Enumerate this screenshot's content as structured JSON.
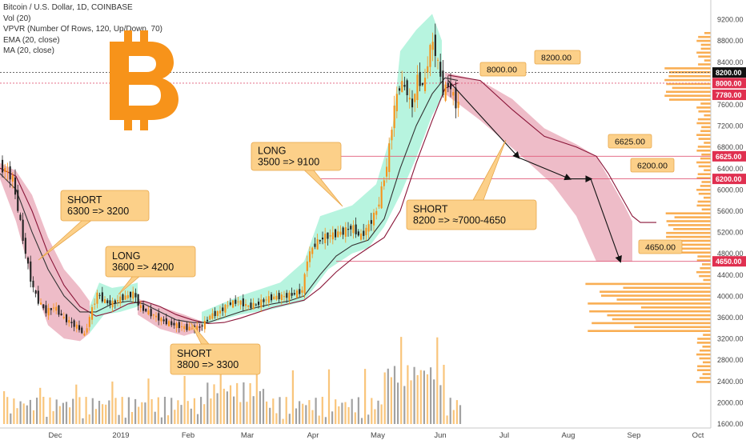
{
  "legend": {
    "title": "Bitcoin / U.S. Dollar, 1D, COINBASE",
    "lines": [
      "Vol (20)",
      "VPVR (Number Of Rows, 120, Up/Down, 70)",
      "EMA (20, close)",
      "MA (20, close)"
    ]
  },
  "logo": {
    "name": "bitcoin-logo",
    "glyph": "B",
    "color": "#f7931a"
  },
  "colors": {
    "up": "#f7931a",
    "down": "#222222",
    "short_zone": "#e8a5b5",
    "long_zone": "#9ff0d4",
    "callout_bg": "#fcd089",
    "callout_border": "#e7a64a",
    "hline": "#e05b7a",
    "ema": "#333333",
    "ma": "#8a1538"
  },
  "chart_data": {
    "type": "candlestick",
    "title": "Bitcoin / U.S. Dollar, 1D, COINBASE",
    "x_axis": {
      "ticks": [
        "Dec",
        "2019",
        "Feb",
        "Mar",
        "Apr",
        "May",
        "Jun",
        "Jul",
        "Aug",
        "Sep",
        "Oct"
      ]
    },
    "y_axis": {
      "ticks": [
        1600,
        2000,
        2400,
        2800,
        3200,
        3600,
        4000,
        4400,
        4800,
        5200,
        5600,
        6000,
        6400,
        6800,
        7200,
        7600,
        8400,
        8800,
        9200
      ],
      "ylim": [
        1600,
        9400
      ]
    },
    "price_markers": [
      {
        "label": "8200.00",
        "value": 8200,
        "bg": "#111111",
        "fg": "#ffffff"
      },
      {
        "label": "8000.00",
        "value": 8000,
        "bg": "#e03050",
        "fg": "#ffffff"
      },
      {
        "label": "7780.00",
        "value": 7780,
        "bg": "#e03050",
        "fg": "#ffffff"
      },
      {
        "label": "6625.00",
        "value": 6625,
        "bg": "#e03050",
        "fg": "#ffffff"
      },
      {
        "label": "6200.00",
        "value": 6200,
        "bg": "#e03050",
        "fg": "#ffffff"
      },
      {
        "label": "4650.00",
        "value": 4650,
        "bg": "#e03050",
        "fg": "#ffffff"
      }
    ],
    "horizontal_levels": [
      8200,
      8000,
      6625,
      6200,
      4650
    ],
    "target_labels": [
      "8000.00",
      "8200.00",
      "6625.00",
      "6200.00",
      "4650.00"
    ],
    "annotations": [
      {
        "label": "SHORT\n6300 => 3200",
        "from": 6300,
        "to": 3200,
        "kind": "short"
      },
      {
        "label": "LONG\n3600 => 4200",
        "from": 3600,
        "to": 4200,
        "kind": "long"
      },
      {
        "label": "SHORT\n3800 => 3300",
        "from": 3800,
        "to": 3300,
        "kind": "short"
      },
      {
        "label": "LONG\n3500 => 9100",
        "from": 3500,
        "to": 9100,
        "kind": "long"
      },
      {
        "label": "SHORT\n8200 => ≈7000-4650",
        "from": 8200,
        "to": "7000-4650",
        "kind": "short"
      }
    ],
    "series": [
      {
        "name": "EMA (20, close)"
      },
      {
        "name": "MA (20, close)"
      },
      {
        "name": "Vol (20)"
      }
    ],
    "price_path": [
      [
        0,
        6450
      ],
      [
        10,
        6350
      ],
      [
        18,
        6200
      ],
      [
        26,
        5500
      ],
      [
        34,
        4800
      ],
      [
        42,
        4200
      ],
      [
        50,
        3900
      ],
      [
        60,
        3700
      ],
      [
        70,
        3800
      ],
      [
        80,
        3600
      ],
      [
        90,
        3500
      ],
      [
        100,
        3400
      ],
      [
        108,
        3250
      ],
      [
        112,
        3500
      ],
      [
        118,
        3800
      ],
      [
        124,
        4050
      ],
      [
        132,
        3900
      ],
      [
        142,
        3850
      ],
      [
        152,
        3950
      ],
      [
        162,
        4000
      ],
      [
        170,
        4050
      ],
      [
        176,
        3800
      ],
      [
        186,
        3700
      ],
      [
        198,
        3600
      ],
      [
        210,
        3500
      ],
      [
        222,
        3450
      ],
      [
        234,
        3400
      ],
      [
        246,
        3380
      ],
      [
        256,
        3450
      ],
      [
        264,
        3620
      ],
      [
        276,
        3700
      ],
      [
        288,
        3850
      ],
      [
        300,
        3900
      ],
      [
        312,
        3800
      ],
      [
        324,
        3850
      ],
      [
        336,
        3950
      ],
      [
        348,
        3980
      ],
      [
        360,
        4000
      ],
      [
        372,
        4050
      ],
      [
        380,
        4100
      ],
      [
        386,
        4700
      ],
      [
        394,
        4950
      ],
      [
        406,
        5100
      ],
      [
        418,
        5150
      ],
      [
        430,
        5200
      ],
      [
        442,
        5300
      ],
      [
        452,
        5100
      ],
      [
        462,
        5300
      ],
      [
        474,
        5650
      ],
      [
        486,
        6500
      ],
      [
        494,
        7500
      ],
      [
        502,
        8000
      ],
      [
        510,
        7900
      ],
      [
        516,
        7500
      ],
      [
        524,
        8100
      ],
      [
        532,
        7900
      ],
      [
        538,
        8600
      ],
      [
        544,
        8800
      ],
      [
        548,
        8400
      ],
      [
        552,
        8200
      ],
      [
        556,
        7780
      ],
      [
        562,
        8000
      ],
      [
        568,
        7780
      ],
      [
        572,
        7600
      ]
    ],
    "ema_path": [
      [
        0,
        6300
      ],
      [
        20,
        6000
      ],
      [
        40,
        5200
      ],
      [
        60,
        4500
      ],
      [
        80,
        4000
      ],
      [
        100,
        3700
      ],
      [
        120,
        3700
      ],
      [
        140,
        3850
      ],
      [
        160,
        3900
      ],
      [
        180,
        3850
      ],
      [
        200,
        3700
      ],
      [
        220,
        3550
      ],
      [
        240,
        3500
      ],
      [
        260,
        3500
      ],
      [
        280,
        3600
      ],
      [
        300,
        3700
      ],
      [
        320,
        3780
      ],
      [
        340,
        3850
      ],
      [
        360,
        3900
      ],
      [
        380,
        4000
      ],
      [
        400,
        4400
      ],
      [
        420,
        4750
      ],
      [
        440,
        4950
      ],
      [
        460,
        5050
      ],
      [
        480,
        5450
      ],
      [
        500,
        6400
      ],
      [
        520,
        7200
      ],
      [
        540,
        7800
      ],
      [
        556,
        8100
      ],
      [
        572,
        8050
      ]
    ],
    "ma_path": [
      [
        0,
        6400
      ],
      [
        20,
        6250
      ],
      [
        40,
        5600
      ],
      [
        60,
        4800
      ],
      [
        80,
        4200
      ],
      [
        100,
        3800
      ],
      [
        120,
        3620
      ],
      [
        140,
        3700
      ],
      [
        160,
        3850
      ],
      [
        180,
        3900
      ],
      [
        200,
        3800
      ],
      [
        220,
        3650
      ],
      [
        240,
        3550
      ],
      [
        260,
        3480
      ],
      [
        280,
        3500
      ],
      [
        300,
        3580
      ],
      [
        320,
        3680
      ],
      [
        340,
        3780
      ],
      [
        360,
        3850
      ],
      [
        380,
        3920
      ],
      [
        400,
        4150
      ],
      [
        420,
        4450
      ],
      [
        440,
        4700
      ],
      [
        460,
        4900
      ],
      [
        480,
        5100
      ],
      [
        500,
        5600
      ],
      [
        520,
        6500
      ],
      [
        540,
        7300
      ],
      [
        556,
        7900
      ],
      [
        572,
        8000
      ]
    ],
    "projection_path": [
      [
        560,
        8150
      ],
      [
        600,
        8050
      ],
      [
        640,
        7500
      ],
      [
        680,
        7000
      ],
      [
        720,
        6800
      ],
      [
        745,
        6625
      ],
      [
        760,
        6300
      ],
      [
        775,
        5900
      ],
      [
        790,
        5500
      ],
      [
        800,
        5380
      ],
      [
        820,
        5380
      ]
    ]
  }
}
